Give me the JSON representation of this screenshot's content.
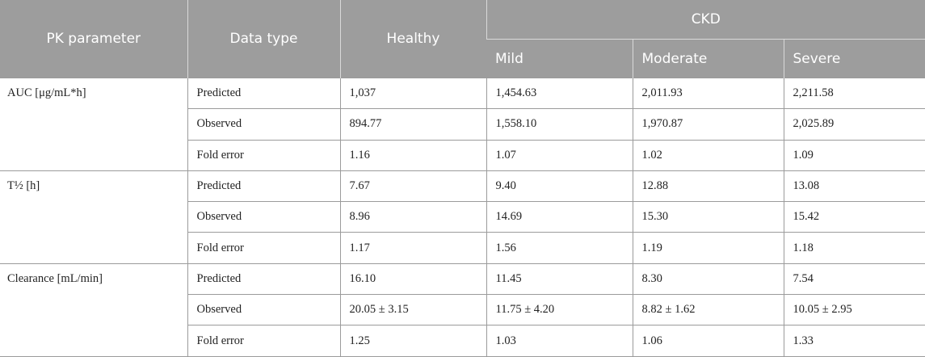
{
  "header": {
    "pk_parameter": "PK parameter",
    "data_type": "Data type",
    "healthy": "Healthy",
    "ckd": "CKD",
    "mild": "Mild",
    "moderate": "Moderate",
    "severe": "Severe"
  },
  "groups": [
    {
      "parameter": "AUC [μg/mL*h]",
      "rows": [
        {
          "type": "Predicted",
          "healthy": "1,037",
          "mild": "1,454.63",
          "moderate": "2,011.93",
          "severe": "2,211.58"
        },
        {
          "type": "Observed",
          "healthy": "894.77",
          "mild": "1,558.10",
          "moderate": "1,970.87",
          "severe": "2,025.89"
        },
        {
          "type": "Fold error",
          "healthy": "1.16",
          "mild": "1.07",
          "moderate": "1.02",
          "severe": "1.09"
        }
      ]
    },
    {
      "parameter": "T½ [h]",
      "rows": [
        {
          "type": "Predicted",
          "healthy": "7.67",
          "mild": "9.40",
          "moderate": "12.88",
          "severe": "13.08"
        },
        {
          "type": "Observed",
          "healthy": "8.96",
          "mild": "14.69",
          "moderate": "15.30",
          "severe": "15.42"
        },
        {
          "type": "Fold error",
          "healthy": "1.17",
          "mild": "1.56",
          "moderate": "1.19",
          "severe": "1.18"
        }
      ]
    },
    {
      "parameter": "Clearance [mL/min]",
      "rows": [
        {
          "type": "Predicted",
          "healthy": "16.10",
          "mild": "11.45",
          "moderate": "8.30",
          "severe": "7.54"
        },
        {
          "type": "Observed",
          "healthy": "20.05 ± 3.15",
          "mild": "11.75 ± 4.20",
          "moderate": "8.82 ± 1.62",
          "severe": "10.05 ± 2.95"
        },
        {
          "type": "Fold error",
          "healthy": "1.25",
          "mild": "1.03",
          "moderate": "1.06",
          "severe": "1.33"
        }
      ]
    }
  ],
  "colors": {
    "header_bg": "#9d9d9d",
    "header_text": "#ffffff",
    "grid": "#9b9b9b"
  }
}
